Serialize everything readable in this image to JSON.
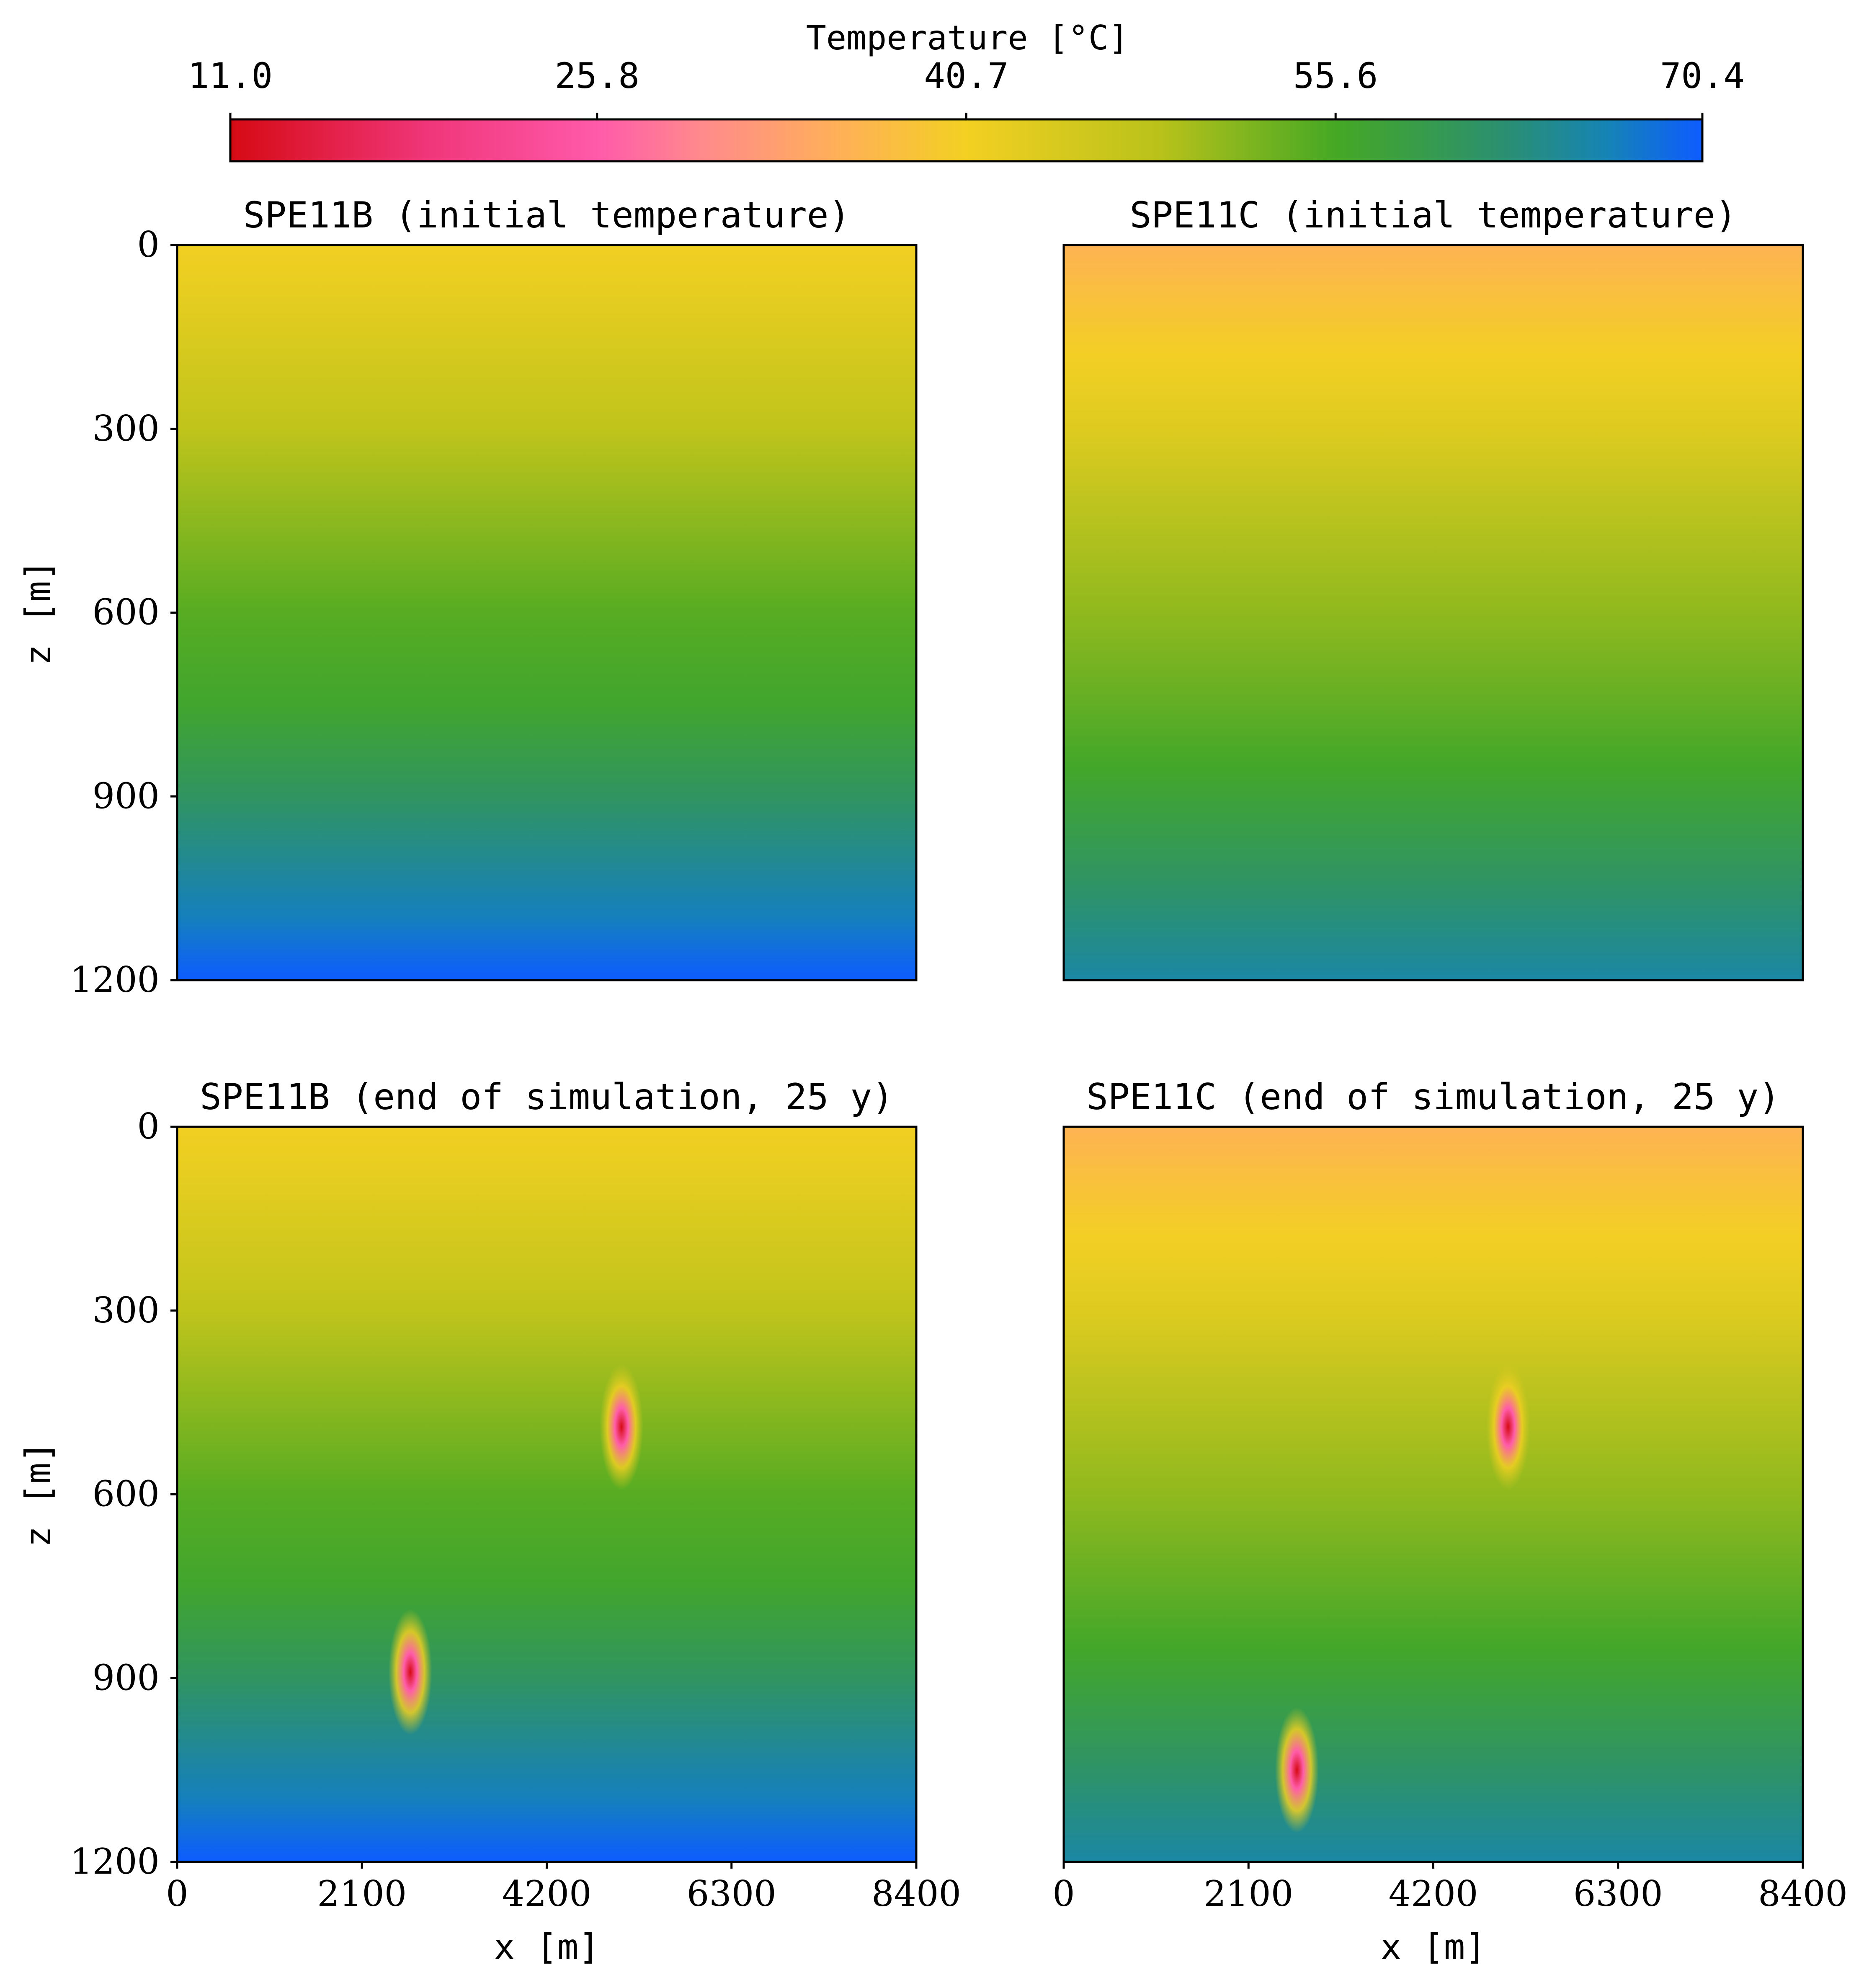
{
  "colorbar": {
    "title": "Temperature [°C]",
    "ticks": [
      "11.0",
      "25.8",
      "40.7",
      "55.6",
      "70.4"
    ],
    "vmin": 11.0,
    "vmax": 70.4,
    "stops": [
      {
        "value": 11.0,
        "color": "#d60a14"
      },
      {
        "value": 19.0,
        "color": "#f0367a"
      },
      {
        "value": 25.8,
        "color": "#ff5aaa"
      },
      {
        "value": 30.0,
        "color": "#ff8a8c"
      },
      {
        "value": 35.5,
        "color": "#ffb058"
      },
      {
        "value": 40.7,
        "color": "#f3d022"
      },
      {
        "value": 48.5,
        "color": "#b9c21a"
      },
      {
        "value": 55.6,
        "color": "#45a824"
      },
      {
        "value": 62.5,
        "color": "#2a8f72"
      },
      {
        "value": 66.5,
        "color": "#1684b4"
      },
      {
        "value": 70.4,
        "color": "#0d5cff"
      }
    ]
  },
  "chart_data": [
    {
      "type": "heatmap",
      "title": "SPE11B (initial temperature)",
      "xlabel": "",
      "ylabel": "z [m]",
      "xlim": [
        0,
        8400
      ],
      "ylim": [
        1200,
        0
      ],
      "x_ticks": [],
      "y_ticks": [
        "0",
        "300",
        "600",
        "900",
        "1200"
      ],
      "temperature_profile": [
        {
          "z": 0,
          "t": 41.0
        },
        {
          "z": 80,
          "t": 42.5
        },
        {
          "z": 300,
          "t": 47.5
        },
        {
          "z": 600,
          "t": 54.5
        },
        {
          "z": 750,
          "t": 56.5
        },
        {
          "z": 900,
          "t": 61.0
        },
        {
          "z": 1100,
          "t": 67.0
        },
        {
          "z": 1200,
          "t": 70.4
        }
      ],
      "anomalies": []
    },
    {
      "type": "heatmap",
      "title": "SPE11C (initial temperature)",
      "xlabel": "",
      "ylabel": "",
      "xlim": [
        0,
        8400
      ],
      "ylim": [
        1200,
        0
      ],
      "x_ticks": [],
      "y_ticks": [],
      "temperature_profile": [
        {
          "z": 0,
          "t": 36.0
        },
        {
          "z": 180,
          "t": 40.5
        },
        {
          "z": 300,
          "t": 43.5
        },
        {
          "z": 600,
          "t": 51.0
        },
        {
          "z": 850,
          "t": 56.0
        },
        {
          "z": 1050,
          "t": 61.5
        },
        {
          "z": 1200,
          "t": 65.5
        }
      ],
      "anomalies": []
    },
    {
      "type": "heatmap",
      "title": "SPE11B (end of simulation, 25 y)",
      "xlabel": "x [m]",
      "ylabel": "z [m]",
      "xlim": [
        0,
        8400
      ],
      "ylim": [
        1200,
        0
      ],
      "x_ticks": [
        "0",
        "2100",
        "4200",
        "6300",
        "8400"
      ],
      "y_ticks": [
        "0",
        "300",
        "600",
        "900",
        "1200"
      ],
      "temperature_profile": [
        {
          "z": 0,
          "t": 41.0
        },
        {
          "z": 80,
          "t": 42.5
        },
        {
          "z": 300,
          "t": 47.5
        },
        {
          "z": 600,
          "t": 54.5
        },
        {
          "z": 750,
          "t": 56.5
        },
        {
          "z": 900,
          "t": 61.0
        },
        {
          "z": 1100,
          "t": 67.0
        },
        {
          "z": 1200,
          "t": 70.4
        }
      ],
      "anomalies": [
        {
          "x": 2650,
          "z": 890,
          "min_t": 11.0
        },
        {
          "x": 5050,
          "z": 490,
          "min_t": 11.0
        }
      ]
    },
    {
      "type": "heatmap",
      "title": "SPE11C (end of simulation, 25 y)",
      "xlabel": "x [m]",
      "ylabel": "",
      "xlim": [
        0,
        8400
      ],
      "ylim": [
        1200,
        0
      ],
      "x_ticks": [
        "0",
        "2100",
        "4200",
        "6300",
        "8400"
      ],
      "y_ticks": [],
      "temperature_profile": [
        {
          "z": 0,
          "t": 36.0
        },
        {
          "z": 180,
          "t": 40.5
        },
        {
          "z": 300,
          "t": 43.5
        },
        {
          "z": 600,
          "t": 51.0
        },
        {
          "z": 850,
          "t": 56.0
        },
        {
          "z": 1050,
          "t": 61.5
        },
        {
          "z": 1200,
          "t": 65.5
        }
      ],
      "anomalies": [
        {
          "x": 2650,
          "z": 1050,
          "min_t": 11.0
        },
        {
          "x": 5050,
          "z": 490,
          "min_t": 11.0
        }
      ]
    }
  ]
}
